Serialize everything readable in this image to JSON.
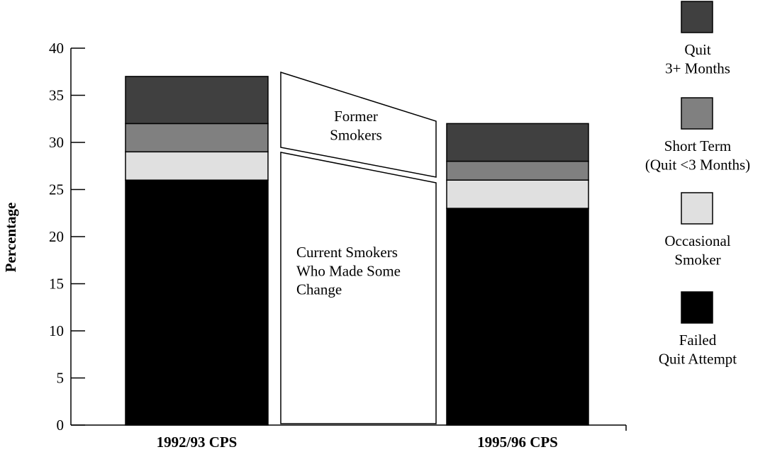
{
  "chart_data": {
    "type": "stacked_bar",
    "ylabel": "Percentage",
    "categories": [
      "1992/93 CPS",
      "1995/96 CPS"
    ],
    "series": [
      {
        "name": "Failed\nQuit Attempt",
        "color": "#000000",
        "values": [
          26,
          23
        ]
      },
      {
        "name": "Occasional\nSmoker",
        "color": "#e0e0e0",
        "values": [
          3,
          3
        ]
      },
      {
        "name": "Short Term\n(Quit <3 Months)",
        "color": "#808080",
        "values": [
          3,
          2
        ]
      },
      {
        "name": "Quit\n3+ Months",
        "color": "#404040",
        "values": [
          5,
          4
        ]
      }
    ],
    "annotations": [
      "Former\nSmokers",
      "Current Smokers\nWho Made Some\nChange"
    ],
    "ylim": [
      0,
      40
    ],
    "yticks": [
      0,
      5,
      10,
      15,
      20,
      25,
      30,
      35,
      40
    ]
  }
}
